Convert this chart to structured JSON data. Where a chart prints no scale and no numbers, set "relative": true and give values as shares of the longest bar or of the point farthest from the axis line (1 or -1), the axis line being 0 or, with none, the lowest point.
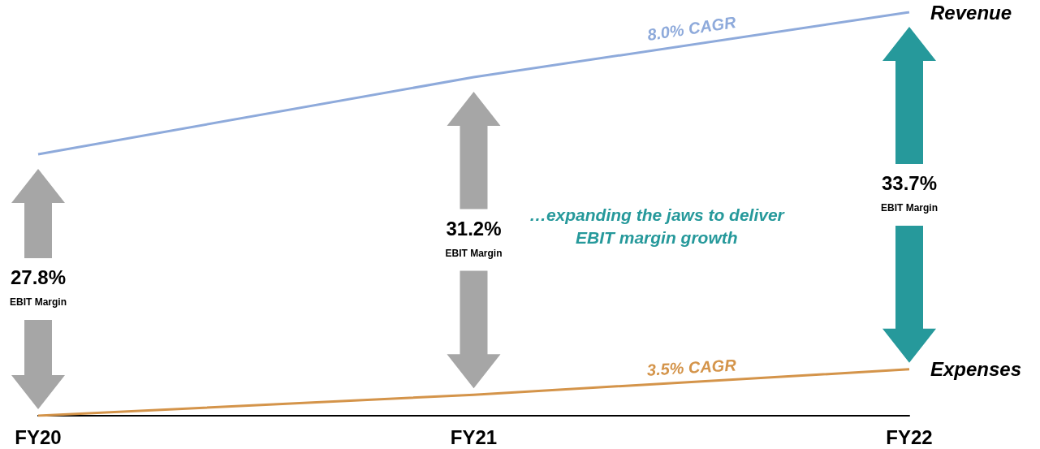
{
  "chart_data": {
    "type": "line",
    "relative": true,
    "categories": [
      "FY20",
      "FY21",
      "FY22"
    ],
    "series": [
      {
        "name": "Revenue",
        "color": "#8eaadb",
        "values": [
          0.648,
          0.839,
          1
        ]
      },
      {
        "name": "Expenses",
        "color": "#d4944a",
        "values": [
          0,
          0.052,
          0.115
        ]
      }
    ],
    "annotations": [
      "8.0% CAGR",
      "3.5% CAGR",
      "…expanding the jaws to deliver\nEBIT margin growth",
      "27.8%",
      "EBIT Margin",
      "31.2%",
      "EBIT Margin",
      "33.7%",
      "EBIT Margin"
    ],
    "legend": false,
    "grid": false,
    "marker": "none",
    "line_style": "solid"
  }
}
